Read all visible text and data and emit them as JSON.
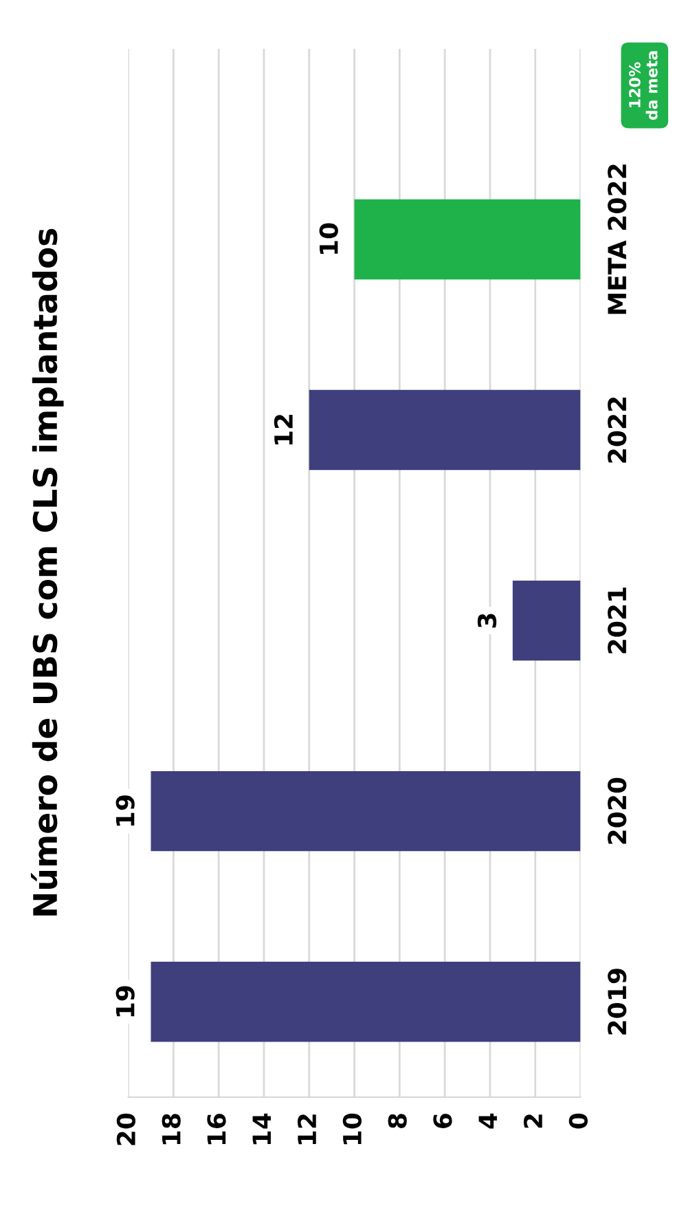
{
  "chart_data": {
    "type": "bar",
    "orientation": "horizontal",
    "title": "Número de UBS com CLS implantados",
    "categories": [
      "META 2022",
      "2022",
      "2021",
      "2020",
      "2019"
    ],
    "values": [
      10,
      12,
      3,
      19,
      19
    ],
    "colors": [
      "#1fb24a",
      "#3f3f7e",
      "#3f3f7e",
      "#3f3f7e",
      "#3f3f7e"
    ],
    "xlim": [
      20,
      0
    ],
    "xticks": [
      20,
      18,
      16,
      14,
      12,
      10,
      8,
      6,
      4,
      2,
      0
    ],
    "grid": "x",
    "data_labels": true,
    "annotations": [
      "120%\nda meta"
    ]
  }
}
